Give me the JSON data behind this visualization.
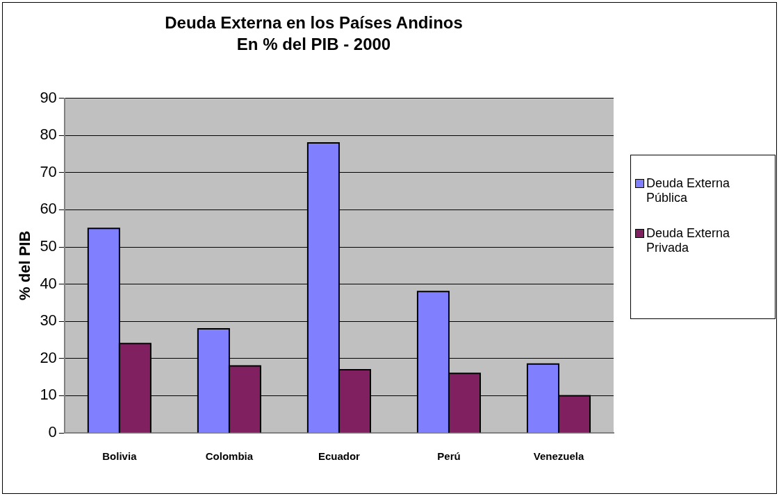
{
  "chart_data": {
    "type": "bar",
    "title": "Deuda Externa en los Países Andinos",
    "subtitle": "En % del PIB - 2000",
    "ylabel": "% del PIB",
    "categories": [
      "Bolivia",
      "Colombia",
      "Ecuador",
      "Perú",
      "Venezuela"
    ],
    "series": [
      {
        "name": "Deuda Externa Pública",
        "color": "#8080ff",
        "values": [
          55,
          28,
          78,
          38,
          18.5
        ]
      },
      {
        "name": "Deuda Externa Privada",
        "color": "#802060",
        "values": [
          24,
          18,
          17,
          16,
          10
        ]
      }
    ],
    "ylim": [
      0,
      90
    ],
    "yticks": [
      0,
      10,
      20,
      30,
      40,
      50,
      60,
      70,
      80,
      90
    ],
    "grid": "y",
    "legend": "right"
  }
}
